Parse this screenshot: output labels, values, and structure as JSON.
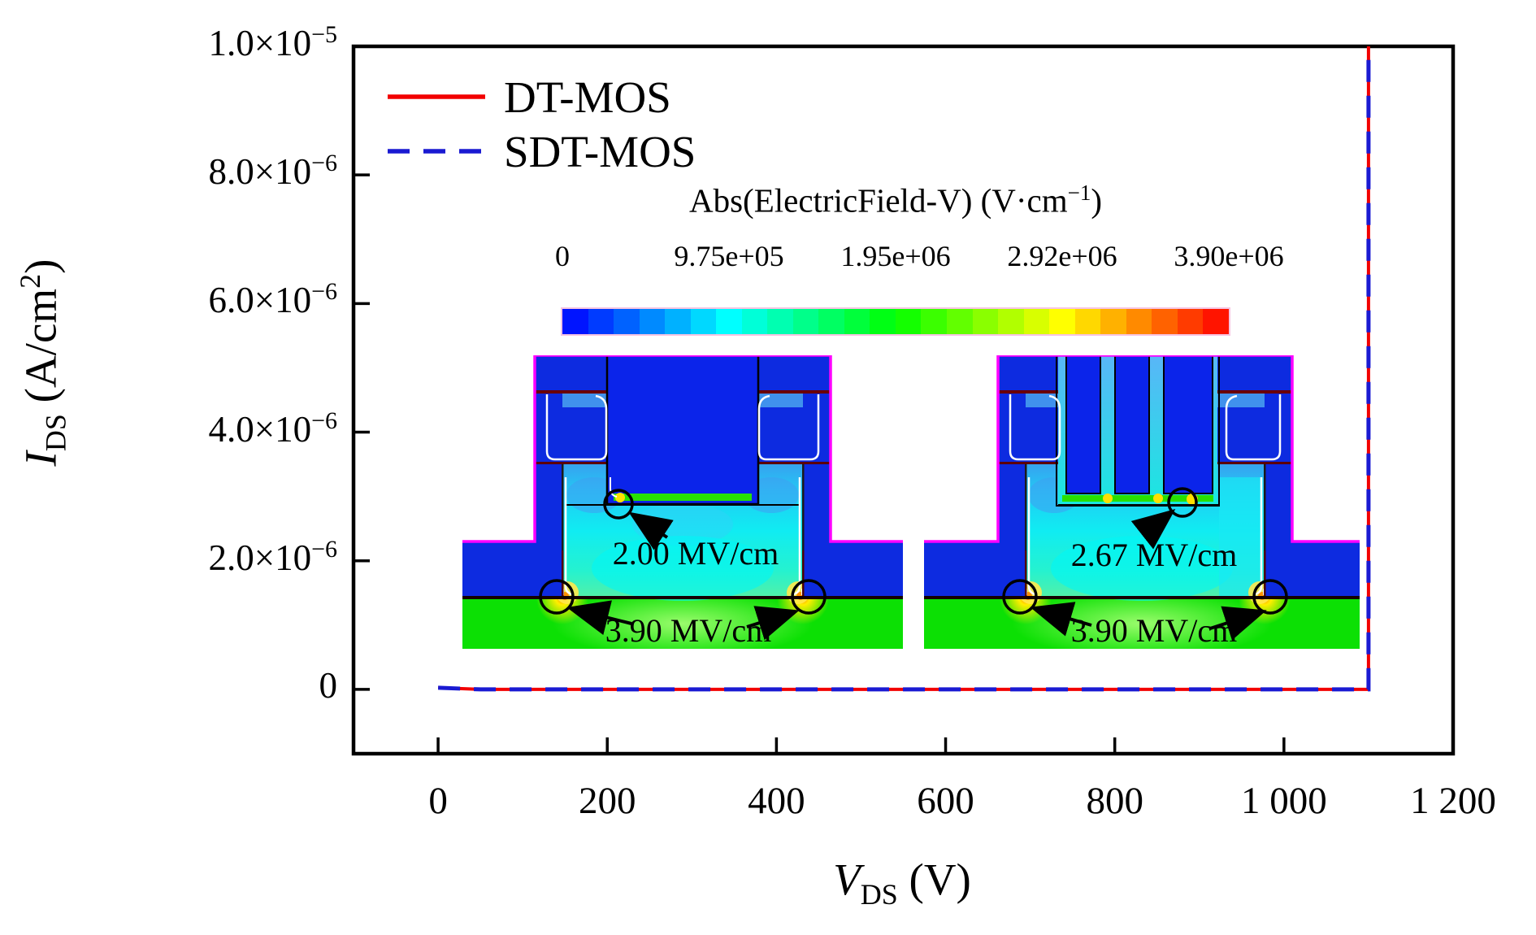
{
  "figure": {
    "background": "#ffffff",
    "frame_color": "#000000"
  },
  "axes": {
    "xlabel": {
      "var": "V",
      "sub": "DS",
      "rest": " (V)"
    },
    "ylabel": {
      "var": "I",
      "sub": "DS",
      "rest": " (A/cm",
      "sup": "2",
      "end": ")"
    },
    "x_ticks": [
      {
        "v": 0,
        "label": "0"
      },
      {
        "v": 200,
        "label": "200"
      },
      {
        "v": 400,
        "label": "400"
      },
      {
        "v": 600,
        "label": "600"
      },
      {
        "v": 800,
        "label": "800"
      },
      {
        "v": 1000,
        "label": "1 000"
      },
      {
        "v": 1200,
        "label": "1 200"
      }
    ],
    "y_ticks": [
      {
        "v": 0,
        "m": "0",
        "e": ""
      },
      {
        "v": 2e-06,
        "m": "2.0×10",
        "e": "−6"
      },
      {
        "v": 4e-06,
        "m": "4.0×10",
        "e": "−6"
      },
      {
        "v": 6e-06,
        "m": "6.0×10",
        "e": "−6"
      },
      {
        "v": 8e-06,
        "m": "8.0×10",
        "e": "−6"
      },
      {
        "v": 1e-05,
        "m": "1.0×10",
        "e": "−5"
      }
    ]
  },
  "legend": {
    "items": [
      {
        "label": "DT-MOS",
        "color": "#f20000",
        "dash": ""
      },
      {
        "label": "SDT-MOS",
        "color": "#1a1ad2",
        "dash": "27 17"
      }
    ]
  },
  "colorbar": {
    "title": {
      "pre": "Abs(ElectricField-V) (V·cm",
      "sup": "−1",
      "post": ")"
    },
    "ticks": [
      "0",
      "9.75e+05",
      "1.95e+06",
      "2.92e+06",
      "3.90e+06"
    ],
    "stops": [
      "#0000ff",
      "#0080ff",
      "#00ffff",
      "#00ff80",
      "#00ff00",
      "#80ff00",
      "#ffff00",
      "#ff8000",
      "#ff0000"
    ],
    "steps": 26
  },
  "insets": {
    "left": {
      "device": "DT-MOS",
      "peak_gate": "2.00 MV/cm",
      "peak_corner": "3.90 MV/cm"
    },
    "right": {
      "device": "SDT-MOS",
      "peak_gate": "2.67 MV/cm",
      "peak_corner": "3.90 MV/cm"
    }
  },
  "chart_data": {
    "type": "line",
    "title": "",
    "xlabel": "V_DS (V)",
    "ylabel": "I_DS (A/cm2)",
    "xlim": [
      -100,
      1200
    ],
    "ylim": [
      -1e-06,
      1e-05
    ],
    "x_tick_values": [
      0,
      200,
      400,
      600,
      800,
      1000,
      1200
    ],
    "x_tick_labels": [
      "0",
      "200",
      "400",
      "600",
      "800",
      "1 000",
      "1 200"
    ],
    "y_tick_values": [
      0,
      2e-06,
      4e-06,
      6e-06,
      8e-06,
      1e-05
    ],
    "y_tick_labels": [
      "0",
      "2.0×10⁻⁶",
      "4.0×10⁻⁶",
      "6.0×10⁻⁶",
      "8.0×10⁻⁶",
      "1.0×10⁻⁵"
    ],
    "grid": false,
    "legend_position": "top-left",
    "breakdown_voltage_V": 1100,
    "series": [
      {
        "name": "DT-MOS",
        "color": "#f20000",
        "style": "solid",
        "points": [
          [
            0,
            2.5e-08
          ],
          [
            50,
            0
          ],
          [
            1100,
            0
          ],
          [
            1100,
            1e-05
          ]
        ]
      },
      {
        "name": "SDT-MOS",
        "color": "#1a1ad2",
        "style": "dashed",
        "points": [
          [
            0,
            2.5e-08
          ],
          [
            50,
            0
          ],
          [
            1100,
            0
          ],
          [
            1100,
            1e-05
          ]
        ]
      }
    ],
    "colorbar": {
      "label": "Abs(ElectricField-V) (V·cm⁻¹)",
      "tick_values": [
        0,
        975000,
        1950000,
        2920000,
        3900000
      ]
    },
    "annotations": [
      "2.00 MV/cm",
      "3.90 MV/cm",
      "2.67 MV/cm",
      "3.90 MV/cm"
    ]
  }
}
